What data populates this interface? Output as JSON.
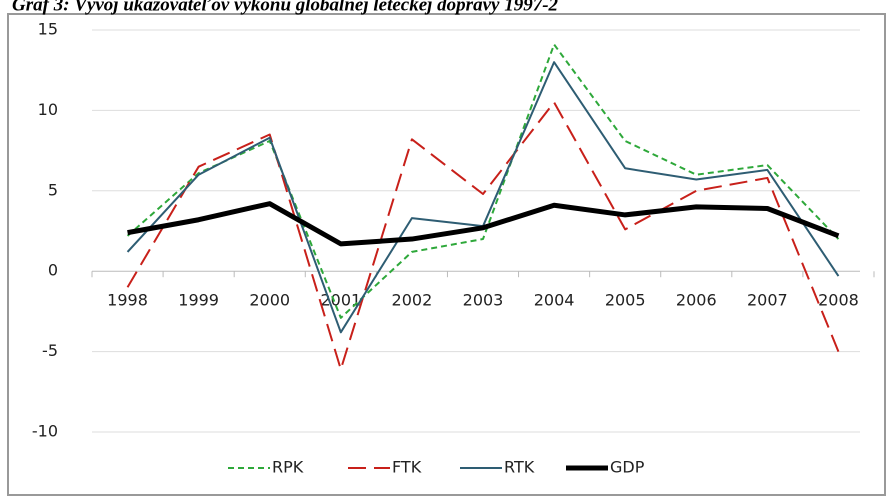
{
  "chart_data": {
    "type": "line",
    "title": "Graf 3: Vývoj ukazovateľov výkonu globálnej leteckej dopravy 1997-2",
    "categories": [
      "1998",
      "1999",
      "2000",
      "2001",
      "2002",
      "2003",
      "2004",
      "2005",
      "2006",
      "2007",
      "2008"
    ],
    "series": [
      {
        "name": "RPK",
        "color": "#2ea83a",
        "dash": "6 4",
        "width": 2,
        "values": [
          2.2,
          6.1,
          8.1,
          -2.9,
          1.2,
          2.0,
          14.1,
          8.1,
          6.0,
          6.6,
          2.0
        ]
      },
      {
        "name": "FTK",
        "color": "#c8201a",
        "dash": "18 8",
        "width": 2,
        "values": [
          -1.0,
          6.5,
          8.5,
          -6.1,
          8.2,
          4.8,
          10.5,
          2.6,
          5.0,
          5.8,
          -5.0
        ]
      },
      {
        "name": "RTK",
        "color": "#2e5d73",
        "dash": "none",
        "width": 2,
        "values": [
          1.2,
          6.0,
          8.3,
          -3.8,
          3.3,
          2.8,
          13.0,
          6.4,
          5.7,
          6.3,
          -0.3
        ]
      },
      {
        "name": "GDP",
        "color": "#000000",
        "dash": "none",
        "width": 5,
        "values": [
          2.4,
          3.2,
          4.2,
          1.7,
          2.0,
          2.7,
          4.1,
          3.5,
          4.0,
          3.9,
          2.2
        ]
      }
    ],
    "ylim": [
      -10,
      15
    ],
    "yticks": [
      -10,
      -5,
      0,
      5,
      10,
      15
    ],
    "grid": true,
    "legend": "bottom"
  }
}
